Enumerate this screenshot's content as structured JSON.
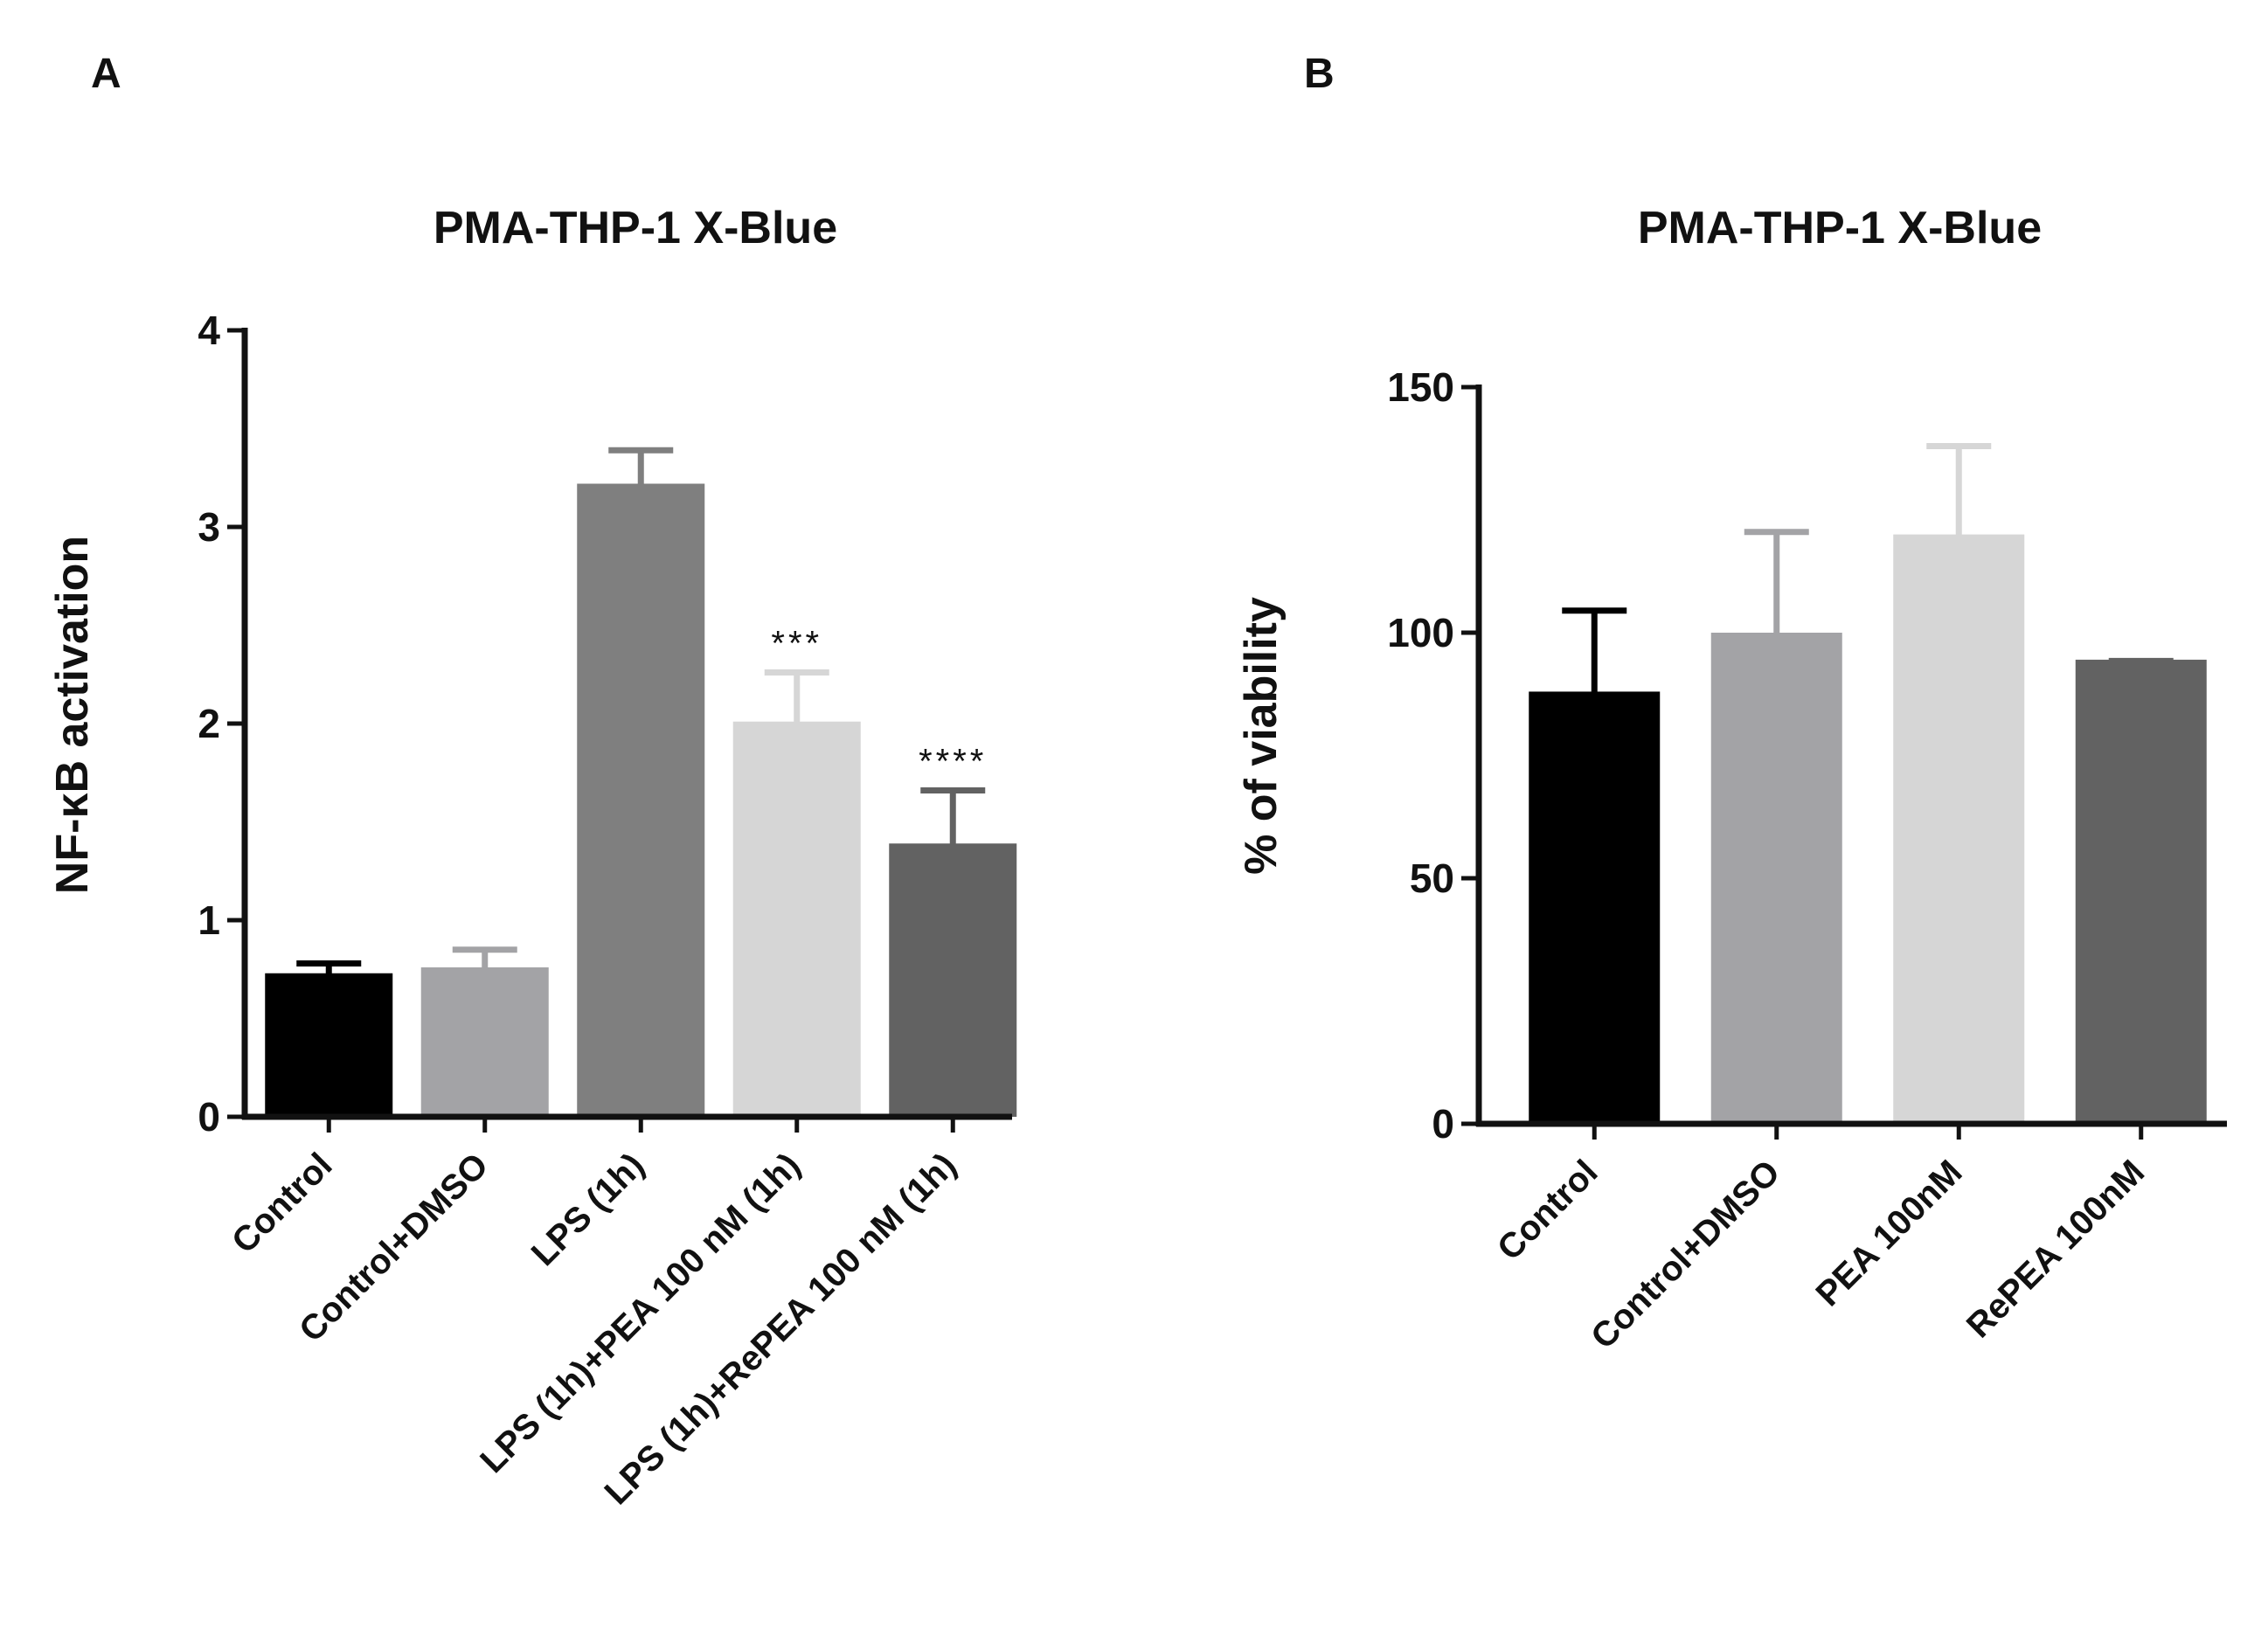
{
  "chart_data": [
    {
      "panel": "A",
      "type": "bar",
      "title": "PMA-THP-1 X-Blue",
      "xlabel": "",
      "ylabel": "NF-κB activation",
      "ylim": [
        0,
        4
      ],
      "yticks": [
        "0",
        "1",
        "2",
        "3",
        "4"
      ],
      "categories": [
        "Control",
        "Control+DMSO",
        "LPS (1h)",
        "LPS (1h)+PEA 100 nM (1h)",
        "LPS (1h)+RePEA 100 nM (1h)"
      ],
      "values": [
        0.73,
        0.76,
        3.22,
        2.01,
        1.39
      ],
      "errors": [
        0.05,
        0.09,
        0.17,
        0.25,
        0.27
      ],
      "colors": [
        "#000000",
        "#a3a3a6",
        "#7f7f7f",
        "#d6d6d6",
        "#626262"
      ],
      "significance": [
        "",
        "",
        "",
        "***",
        "****"
      ]
    },
    {
      "panel": "B",
      "type": "bar",
      "title": "PMA-THP-1 X-Blue",
      "xlabel": "",
      "ylabel": "% of viability",
      "ylim": [
        0,
        150
      ],
      "yticks": [
        "0",
        "50",
        "100",
        "150"
      ],
      "categories": [
        "Control",
        "Control+DMSO",
        "PEA 100nM",
        "RePEA 100nM"
      ],
      "values": [
        88,
        100,
        120,
        94.5
      ],
      "errors": [
        16.5,
        20.5,
        18,
        0
      ],
      "colors": [
        "#000000",
        "#a3a3a6",
        "#d6d6d6",
        "#626262"
      ],
      "significance": [
        "",
        "",
        "",
        ""
      ]
    }
  ]
}
